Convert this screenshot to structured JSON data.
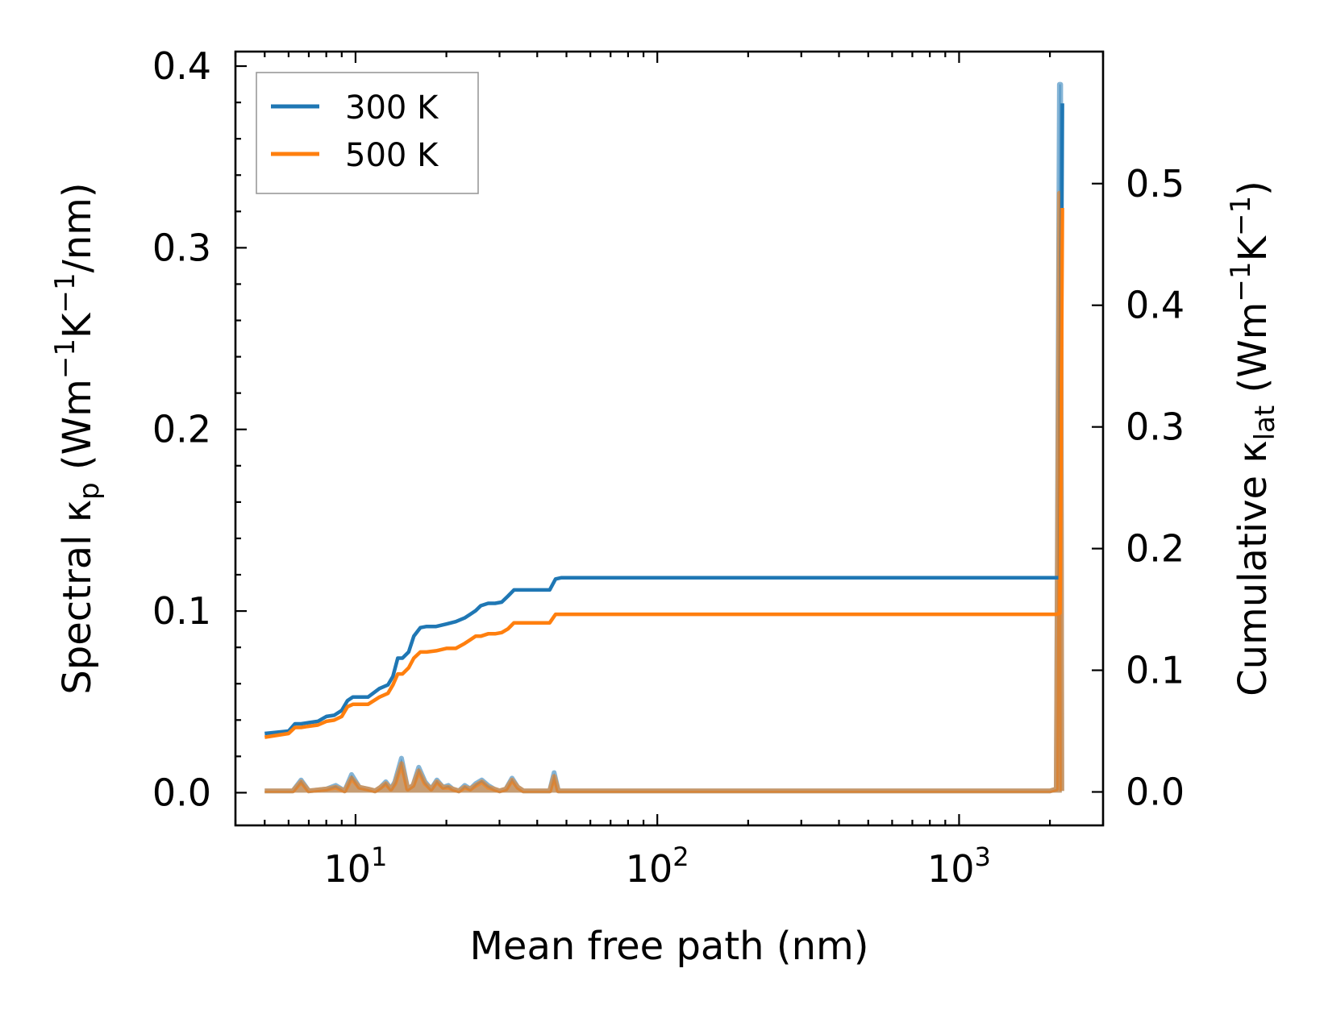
{
  "chart_data": {
    "type": "line",
    "x_scale": "log",
    "xlim": [
      4,
      3000
    ],
    "ylim_left": [
      -0.018,
      0.408
    ],
    "ylim_right": [
      -0.0275,
      0.6085
    ],
    "xlabel": "Mean free path (nm)",
    "ylabel_left": {
      "main": "Spectral κ",
      "sub": "p",
      "unit_pre": " (Wm",
      "sup1": "−1",
      "mid": "K",
      "sup2": "−1",
      "unit_post": "/nm)"
    },
    "ylabel_right": {
      "main": "Cumulative κ",
      "sub": "lat",
      "unit_pre": " (Wm",
      "sup1": "−1",
      "mid": "K",
      "sup2": "−1",
      "unit_post": ")"
    },
    "x_ticks": [
      {
        "value": 10,
        "base": "10",
        "exp": "1"
      },
      {
        "value": 100,
        "base": "10",
        "exp": "2"
      },
      {
        "value": 1000,
        "base": "10",
        "exp": "3"
      }
    ],
    "y_ticks_left": [
      {
        "value": 0.0,
        "label": "0.0"
      },
      {
        "value": 0.1,
        "label": "0.1"
      },
      {
        "value": 0.2,
        "label": "0.2"
      },
      {
        "value": 0.3,
        "label": "0.3"
      },
      {
        "value": 0.4,
        "label": "0.4"
      }
    ],
    "y_ticks_right": [
      {
        "value": 0.0,
        "label": "0.0"
      },
      {
        "value": 0.1,
        "label": "0.1"
      },
      {
        "value": 0.2,
        "label": "0.2"
      },
      {
        "value": 0.3,
        "label": "0.3"
      },
      {
        "value": 0.4,
        "label": "0.4"
      },
      {
        "value": 0.5,
        "label": "0.5"
      }
    ],
    "legend": {
      "position": "upper-left",
      "entries": [
        "300 K",
        "500 K"
      ]
    },
    "grid": false,
    "series": [
      {
        "name": "300 K",
        "color": "#1f77b4",
        "kind": "cumulative",
        "axis": "right",
        "x": [
          5.0,
          6.0,
          6.3,
          6.6,
          7.0,
          7.5,
          8.0,
          8.5,
          9.0,
          9.4,
          9.8,
          10.2,
          11.0,
          12.0,
          12.8,
          13.3,
          13.8,
          14.3,
          15.0,
          15.6,
          16.4,
          17.2,
          18.5,
          20.0,
          21.5,
          23.0,
          24.0,
          25.0,
          26.0,
          27.5,
          29.0,
          30.5,
          32.0,
          33.5,
          35.0,
          40.0,
          44.0,
          46.0,
          48.0,
          1000.0,
          2100.0,
          2160.0,
          2200.0
        ],
        "values": [
          0.048,
          0.05,
          0.056,
          0.056,
          0.057,
          0.058,
          0.062,
          0.063,
          0.067,
          0.075,
          0.078,
          0.078,
          0.078,
          0.085,
          0.088,
          0.095,
          0.11,
          0.11,
          0.115,
          0.128,
          0.135,
          0.136,
          0.136,
          0.138,
          0.14,
          0.143,
          0.146,
          0.149,
          0.153,
          0.155,
          0.155,
          0.156,
          0.161,
          0.166,
          0.166,
          0.166,
          0.166,
          0.175,
          0.176,
          0.176,
          0.176,
          0.176,
          0.566
        ]
      },
      {
        "name": "500 K",
        "color": "#ff7f0e",
        "kind": "cumulative",
        "axis": "right",
        "x": [
          5.0,
          6.0,
          6.3,
          6.6,
          7.0,
          7.5,
          8.0,
          8.5,
          9.0,
          9.4,
          9.8,
          10.2,
          11.0,
          12.0,
          12.8,
          13.3,
          13.8,
          14.3,
          15.0,
          15.6,
          16.4,
          17.2,
          18.5,
          20.0,
          21.5,
          23.0,
          24.0,
          25.0,
          26.0,
          27.5,
          29.0,
          30.5,
          32.0,
          33.5,
          35.0,
          40.0,
          44.0,
          46.0,
          48.0,
          1000.0,
          2100.0,
          2160.0,
          2200.0
        ],
        "values": [
          0.045,
          0.048,
          0.053,
          0.053,
          0.054,
          0.055,
          0.058,
          0.059,
          0.062,
          0.07,
          0.072,
          0.072,
          0.072,
          0.078,
          0.081,
          0.088,
          0.097,
          0.097,
          0.102,
          0.11,
          0.115,
          0.115,
          0.116,
          0.118,
          0.118,
          0.122,
          0.125,
          0.128,
          0.128,
          0.13,
          0.13,
          0.131,
          0.134,
          0.139,
          0.139,
          0.139,
          0.139,
          0.146,
          0.146,
          0.146,
          0.146,
          0.147,
          0.48
        ]
      },
      {
        "name": "300 K",
        "color": "#1f77b4",
        "kind": "spectral",
        "axis": "left",
        "x": [
          5.0,
          6.2,
          6.6,
          7.0,
          8.0,
          8.6,
          9.2,
          9.7,
          10.3,
          11.0,
          11.6,
          12.1,
          12.6,
          13.1,
          13.5,
          14.2,
          14.9,
          15.5,
          16.2,
          17.0,
          17.8,
          18.6,
          19.5,
          20.3,
          21.0,
          22.0,
          23.0,
          24.0,
          25.0,
          26.2,
          27.5,
          28.8,
          30.0,
          31.5,
          33.0,
          34.5,
          36.0,
          42.0,
          44.0,
          45.5,
          47.0,
          48.5,
          1500.0,
          2000.0,
          2100.0,
          2150.0,
          2170.0,
          2190.0
        ],
        "values": [
          0.001,
          0.001,
          0.007,
          0.001,
          0.002,
          0.004,
          0.001,
          0.01,
          0.003,
          0.002,
          0.001,
          0.003,
          0.006,
          0.002,
          0.006,
          0.019,
          0.002,
          0.004,
          0.014,
          0.006,
          0.002,
          0.007,
          0.003,
          0.004,
          0.002,
          0.001,
          0.004,
          0.002,
          0.005,
          0.007,
          0.004,
          0.002,
          0.001,
          0.002,
          0.008,
          0.003,
          0.001,
          0.001,
          0.001,
          0.011,
          0.001,
          0.001,
          0.001,
          0.001,
          0.002,
          0.39,
          0.39,
          0.001
        ]
      },
      {
        "name": "500 K",
        "color": "#ff7f0e",
        "kind": "spectral",
        "axis": "left",
        "x": [
          5.0,
          6.2,
          6.6,
          7.0,
          8.0,
          8.6,
          9.2,
          9.7,
          10.3,
          11.0,
          11.6,
          12.1,
          12.6,
          13.1,
          13.5,
          14.2,
          14.9,
          15.5,
          16.2,
          17.0,
          17.8,
          18.6,
          19.5,
          20.3,
          21.0,
          22.0,
          23.0,
          24.0,
          25.0,
          26.2,
          27.5,
          28.8,
          30.0,
          31.5,
          33.0,
          34.5,
          36.0,
          42.0,
          44.0,
          45.5,
          47.0,
          48.5,
          1500.0,
          2000.0,
          2100.0,
          2150.0,
          2170.0,
          2190.0
        ],
        "values": [
          0.001,
          0.001,
          0.006,
          0.001,
          0.002,
          0.003,
          0.001,
          0.008,
          0.003,
          0.002,
          0.001,
          0.003,
          0.005,
          0.002,
          0.005,
          0.016,
          0.002,
          0.004,
          0.012,
          0.005,
          0.002,
          0.006,
          0.003,
          0.003,
          0.002,
          0.001,
          0.003,
          0.002,
          0.004,
          0.006,
          0.003,
          0.002,
          0.001,
          0.002,
          0.007,
          0.003,
          0.001,
          0.001,
          0.001,
          0.009,
          0.001,
          0.001,
          0.001,
          0.001,
          0.002,
          0.33,
          0.33,
          0.001
        ]
      }
    ]
  }
}
